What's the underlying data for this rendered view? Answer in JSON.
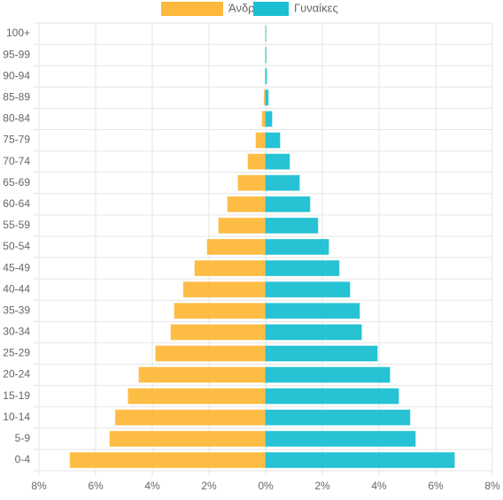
{
  "chart_data": {
    "type": "pyramid",
    "categories": [
      "0-4",
      "5-9",
      "10-14",
      "15-19",
      "20-24",
      "25-29",
      "30-34",
      "35-39",
      "40-44",
      "45-49",
      "50-54",
      "55-59",
      "60-64",
      "65-69",
      "70-74",
      "75-79",
      "80-84",
      "85-89",
      "90-94",
      "95-99",
      "100+"
    ],
    "series": [
      {
        "name": "Άνδρες",
        "color": "#fdb93b",
        "values": [
          -6.9,
          -5.5,
          -5.3,
          -4.85,
          -4.47,
          -3.88,
          -3.34,
          -3.22,
          -2.9,
          -2.5,
          -2.06,
          -1.66,
          -1.34,
          -0.97,
          -0.62,
          -0.34,
          -0.12,
          -0.05,
          -0.01,
          -0.005,
          -0.002
        ]
      },
      {
        "name": "Γυναίκες",
        "color": "#1bbfd1",
        "values": [
          6.66,
          5.28,
          5.09,
          4.69,
          4.38,
          3.94,
          3.38,
          3.31,
          2.97,
          2.59,
          2.22,
          1.84,
          1.56,
          1.19,
          0.84,
          0.5,
          0.22,
          0.09,
          0.03,
          0.01,
          0.005
        ]
      }
    ],
    "xlim": [
      -8,
      8
    ],
    "xticks": [
      {
        "value": -8,
        "label": "8%"
      },
      {
        "value": -6,
        "label": "6%"
      },
      {
        "value": -4,
        "label": "4%"
      },
      {
        "value": -2,
        "label": "2%"
      },
      {
        "value": 0,
        "label": "0%"
      },
      {
        "value": 2,
        "label": "2%"
      },
      {
        "value": 4,
        "label": "4%"
      },
      {
        "value": 6,
        "label": "6%"
      },
      {
        "value": 8,
        "label": "8%"
      }
    ],
    "grid": true,
    "legend": "top"
  }
}
